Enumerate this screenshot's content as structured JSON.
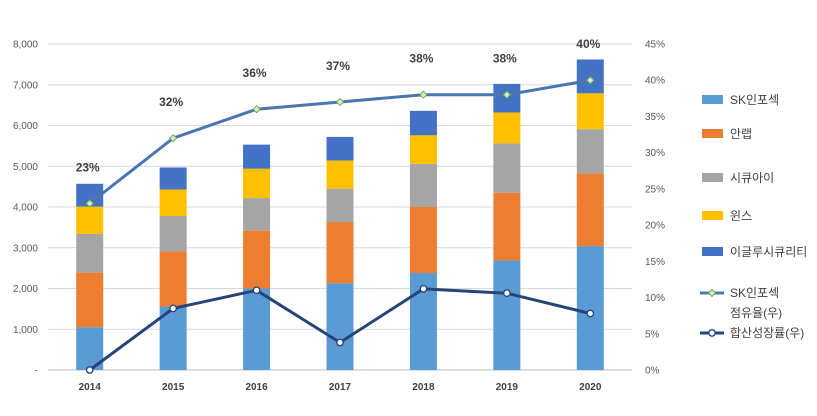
{
  "chart_data": {
    "type": "bar",
    "stacked": true,
    "categories": [
      "2014",
      "2015",
      "2016",
      "2017",
      "2018",
      "2019",
      "2020"
    ],
    "series": [
      {
        "name": "SK인포섹",
        "color": "#5B9BD5",
        "values": [
          1050,
          1560,
          2000,
          2130,
          2380,
          2690,
          3040
        ]
      },
      {
        "name": "안랩",
        "color": "#ED7D31",
        "values": [
          1340,
          1350,
          1420,
          1500,
          1620,
          1660,
          1780
        ]
      },
      {
        "name": "시큐아이",
        "color": "#A5A5A5",
        "values": [
          950,
          870,
          800,
          820,
          1060,
          1210,
          1090
        ]
      },
      {
        "name": "윈스",
        "color": "#FFC000",
        "values": [
          670,
          650,
          720,
          690,
          700,
          760,
          880
        ]
      },
      {
        "name": "이글루시큐리티",
        "color": "#4472C4",
        "values": [
          560,
          540,
          590,
          580,
          600,
          700,
          830
        ]
      }
    ],
    "line_series": [
      {
        "name": "SK인포섹 점유율(우)",
        "color": "#4A77B4",
        "marker_fill": "#D9EAD3",
        "marker_stroke": "#70AD47",
        "values": [
          23,
          32,
          36,
          37,
          38,
          38,
          40
        ],
        "labels": [
          "23%",
          "32%",
          "36%",
          "37%",
          "38%",
          "38%",
          "40%"
        ]
      },
      {
        "name": "합산성장률(우)",
        "color": "#264478",
        "marker_fill": "#FFFFFF",
        "marker_stroke": "#264478",
        "values": [
          0,
          8.5,
          11,
          3.8,
          11.2,
          10.6,
          7.8
        ]
      }
    ],
    "y_left": {
      "min": 0,
      "max": 8000,
      "step": 1000,
      "tick_labels": [
        "-",
        "1,000",
        "2,000",
        "3,000",
        "4,000",
        "5,000",
        "6,000",
        "7,000",
        "8,000"
      ]
    },
    "y_right": {
      "min": 0,
      "max": 45,
      "step": 5,
      "tick_labels": [
        "0%",
        "5%",
        "10%",
        "15%",
        "20%",
        "25%",
        "30%",
        "35%",
        "40%",
        "45%"
      ]
    },
    "legend": {
      "position": "right",
      "items": [
        {
          "label": "SK인포섹",
          "kind": "box",
          "color": "#5B9BD5"
        },
        {
          "label": "안랩",
          "kind": "box",
          "color": "#ED7D31"
        },
        {
          "label": "시큐아이",
          "kind": "box",
          "color": "#A5A5A5"
        },
        {
          "label": "윈스",
          "kind": "box",
          "color": "#FFC000"
        },
        {
          "label": "이글루시큐리티",
          "kind": "box",
          "color": "#4472C4"
        },
        {
          "label": "SK인포섹 점유율(우)",
          "kind": "line",
          "color": "#4A77B4",
          "marker_fill": "#D9EAD3",
          "marker_stroke": "#70AD47"
        },
        {
          "label": "합산성장률(우)",
          "kind": "line",
          "color": "#264478",
          "marker_fill": "#FFFFFF",
          "marker_stroke": "#264478"
        }
      ]
    },
    "grid": true
  }
}
